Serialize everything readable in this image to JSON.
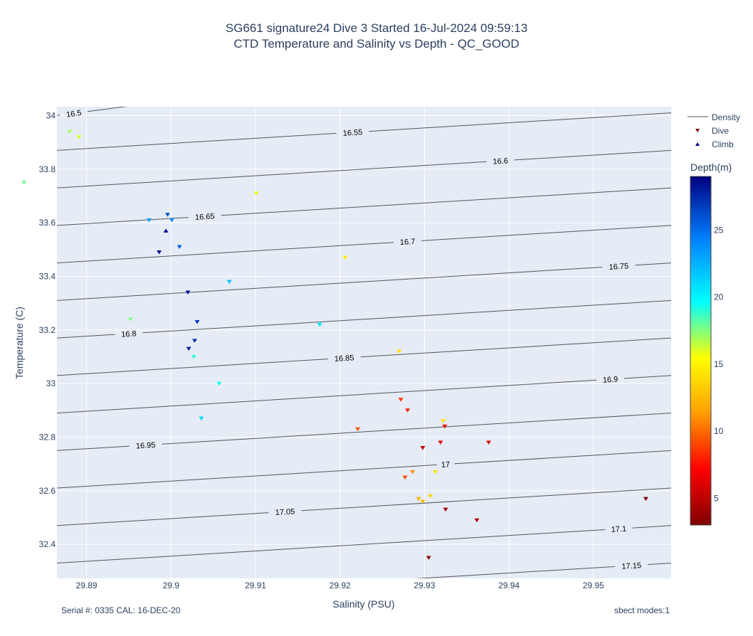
{
  "titles": {
    "line1": "SG661 signature24 Dive 3 Started 16-Jul-2024 09:59:13",
    "line2": "CTD Temperature and Salinity vs Depth - QC_GOOD"
  },
  "footer": {
    "serial": "Serial #: 0335  CAL: 16-DEC-20",
    "modes": "sbect modes:1"
  },
  "colors": {
    "plot_bg": "#e5ecf6",
    "grid": "#ffffff",
    "density_line": "#555555",
    "text": "#2a3f5f"
  },
  "chart_data": {
    "type": "scatter",
    "xlabel": "Salinity (PSU)",
    "ylabel": "Temperature (C)",
    "xlim": [
      29.8865,
      29.9592
    ],
    "ylim": [
      32.273,
      34.033
    ],
    "x_ticks": [
      29.89,
      29.9,
      29.91,
      29.92,
      29.93,
      29.94,
      29.95
    ],
    "x_tick_labels": [
      "29.89",
      "29.9",
      "29.91",
      "29.92",
      "29.93",
      "29.94",
      "29.95"
    ],
    "y_ticks": [
      32.4,
      32.6,
      32.8,
      33.0,
      33.2,
      33.4,
      33.6,
      33.8,
      34.0
    ],
    "y_tick_labels": [
      "32.4",
      "32.6",
      "32.8",
      "33",
      "33.2",
      "33.4",
      "33.6",
      "33.8",
      "34"
    ],
    "grid": true,
    "legend_position": "top-right",
    "legend": [
      {
        "name": "Density",
        "symbol": "line"
      },
      {
        "name": "Dive",
        "symbol": "triangle-down",
        "color": "#8b0000"
      },
      {
        "name": "Climb",
        "symbol": "triangle-up",
        "color": "#00008b"
      }
    ],
    "colorbar": {
      "title": "Depth(m)",
      "range": [
        3,
        29
      ],
      "ticks": [
        5,
        10,
        15,
        20,
        25
      ],
      "colorscale": [
        "#800000",
        "#ff0000",
        "#ffa500",
        "#ffff00",
        "#00ffff",
        "#0080ff",
        "#000080"
      ]
    },
    "density_contours": [
      {
        "level": "16.5",
        "y_left": 34.0,
        "y_right": 34.3,
        "label_x": 29.8885
      },
      {
        "level": "16.55",
        "y_left": 33.87,
        "y_right": 34.01,
        "label_x": 29.9215
      },
      {
        "level": "16.6",
        "y_left": 33.73,
        "y_right": 33.87,
        "label_x": 29.939
      },
      {
        "level": "16.65",
        "y_left": 33.59,
        "y_right": 33.73,
        "label_x": 29.904
      },
      {
        "level": "16.7",
        "y_left": 33.45,
        "y_right": 33.59,
        "label_x": 29.928
      },
      {
        "level": "16.75",
        "y_left": 33.31,
        "y_right": 33.45,
        "label_x": 29.953
      },
      {
        "level": "16.8",
        "y_left": 33.17,
        "y_right": 33.31,
        "label_x": 29.895
      },
      {
        "level": "16.85",
        "y_left": 33.03,
        "y_right": 33.17,
        "label_x": 29.9205
      },
      {
        "level": "16.9",
        "y_left": 32.89,
        "y_right": 33.03,
        "label_x": 29.952
      },
      {
        "level": "16.95",
        "y_left": 32.75,
        "y_right": 32.89,
        "label_x": 29.897
      },
      {
        "level": "17",
        "y_left": 32.61,
        "y_right": 32.75,
        "label_x": 29.9325
      },
      {
        "level": "17.05",
        "y_left": 32.47,
        "y_right": 32.61,
        "label_x": 29.9135
      },
      {
        "level": "17.1",
        "y_left": 32.33,
        "y_right": 32.47,
        "label_x": 29.953
      },
      {
        "level": "17.15",
        "y_left": 32.19,
        "y_right": 32.33,
        "label_x": 29.9545
      }
    ],
    "series": [
      {
        "name": "Dive",
        "points": [
          {
            "x": 29.9562,
            "y": 32.57,
            "depth": 3
          },
          {
            "x": 29.9305,
            "y": 32.35,
            "depth": 3.5
          },
          {
            "x": 29.9325,
            "y": 32.53,
            "depth": 4
          },
          {
            "x": 29.9362,
            "y": 32.49,
            "depth": 4.5
          },
          {
            "x": 29.9298,
            "y": 32.76,
            "depth": 5
          },
          {
            "x": 29.9376,
            "y": 32.78,
            "depth": 6
          },
          {
            "x": 29.9319,
            "y": 32.78,
            "depth": 6.5
          },
          {
            "x": 29.9324,
            "y": 32.84,
            "depth": 7
          },
          {
            "x": 29.928,
            "y": 32.9,
            "depth": 8
          },
          {
            "x": 29.9272,
            "y": 32.94,
            "depth": 8.5
          },
          {
            "x": 29.9277,
            "y": 32.65,
            "depth": 9
          },
          {
            "x": 29.9221,
            "y": 32.83,
            "depth": 9.5
          },
          {
            "x": 29.9286,
            "y": 32.67,
            "depth": 11
          },
          {
            "x": 29.9293,
            "y": 32.57,
            "depth": 12
          },
          {
            "x": 29.9298,
            "y": 32.56,
            "depth": 12.5
          },
          {
            "x": 29.9307,
            "y": 32.58,
            "depth": 13.5
          },
          {
            "x": 29.9322,
            "y": 32.86,
            "depth": 14
          },
          {
            "x": 29.9313,
            "y": 32.67,
            "depth": 14.5
          },
          {
            "x": 29.927,
            "y": 33.12,
            "depth": 14.5
          },
          {
            "x": 29.9206,
            "y": 33.47,
            "depth": 14.8
          },
          {
            "x": 29.9101,
            "y": 33.71,
            "depth": 15.8
          },
          {
            "x": 29.8891,
            "y": 33.92,
            "depth": 16
          },
          {
            "x": 29.888,
            "y": 33.94,
            "depth": 17
          },
          {
            "x": 29.8952,
            "y": 33.24,
            "depth": 17.5
          },
          {
            "x": 29.8826,
            "y": 33.75,
            "depth": 18
          },
          {
            "x": 29.9027,
            "y": 33.1,
            "depth": 19
          },
          {
            "x": 29.9057,
            "y": 33.0,
            "depth": 19.5
          },
          {
            "x": 29.9176,
            "y": 33.22,
            "depth": 20.5
          },
          {
            "x": 29.9036,
            "y": 32.87,
            "depth": 21
          },
          {
            "x": 29.9069,
            "y": 33.38,
            "depth": 22
          },
          {
            "x": 29.8974,
            "y": 33.61,
            "depth": 23
          },
          {
            "x": 29.9001,
            "y": 33.61,
            "depth": 24
          },
          {
            "x": 29.901,
            "y": 33.51,
            "depth": 25.5
          },
          {
            "x": 29.8996,
            "y": 33.63,
            "depth": 26
          },
          {
            "x": 29.9031,
            "y": 33.23,
            "depth": 27
          },
          {
            "x": 29.9028,
            "y": 33.16,
            "depth": 27.5
          },
          {
            "x": 29.9021,
            "y": 33.13,
            "depth": 27.8
          },
          {
            "x": 29.902,
            "y": 33.34,
            "depth": 28
          },
          {
            "x": 29.8986,
            "y": 33.49,
            "depth": 28.5
          }
        ]
      },
      {
        "name": "Climb",
        "points": [
          {
            "x": 29.8994,
            "y": 33.57,
            "depth": 28.5
          }
        ]
      }
    ]
  }
}
